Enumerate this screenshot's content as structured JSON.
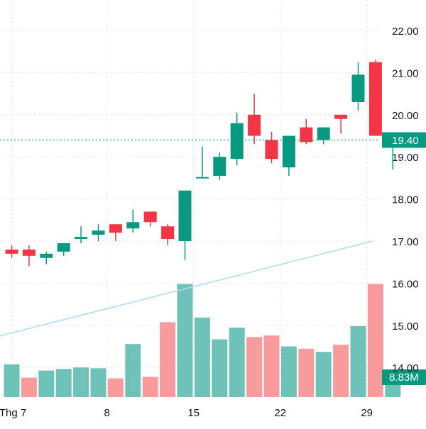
{
  "chart_data": {
    "type": "candlestick",
    "y_axis": {
      "ticks": [
        "22.00",
        "21.00",
        "20.00",
        "19.00",
        "18.00",
        "17.00",
        "16.00",
        "15.00",
        "14.00"
      ],
      "range": [
        13.5,
        22.6
      ],
      "grid": true
    },
    "x_axis": {
      "ticks": [
        {
          "label": "Thg 7",
          "index": 0
        },
        {
          "label": "8",
          "index": 5.5
        },
        {
          "label": "15",
          "index": 10.5
        },
        {
          "label": "22",
          "index": 15.5
        },
        {
          "label": "29",
          "index": 20.5
        }
      ],
      "grid": true
    },
    "candles": [
      {
        "o": 16.8,
        "h": 16.9,
        "l": 16.6,
        "c": 16.7
      },
      {
        "o": 16.8,
        "h": 16.9,
        "l": 16.4,
        "c": 16.65
      },
      {
        "o": 16.6,
        "h": 16.75,
        "l": 16.45,
        "c": 16.7
      },
      {
        "o": 16.75,
        "h": 16.95,
        "l": 16.65,
        "c": 16.95
      },
      {
        "o": 17.05,
        "h": 17.35,
        "l": 16.95,
        "c": 17.1
      },
      {
        "o": 17.15,
        "h": 17.4,
        "l": 17.0,
        "c": 17.25
      },
      {
        "o": 17.4,
        "h": 17.4,
        "l": 17.0,
        "c": 17.2
      },
      {
        "o": 17.3,
        "h": 17.75,
        "l": 17.2,
        "c": 17.45
      },
      {
        "o": 17.7,
        "h": 17.7,
        "l": 17.35,
        "c": 17.45
      },
      {
        "o": 17.35,
        "h": 17.4,
        "l": 16.9,
        "c": 17.05
      },
      {
        "o": 17.0,
        "h": 18.2,
        "l": 16.55,
        "c": 18.2
      },
      {
        "o": 18.52,
        "h": 19.25,
        "l": 18.5,
        "c": 18.52
      },
      {
        "o": 18.55,
        "h": 19.1,
        "l": 18.45,
        "c": 19.0
      },
      {
        "o": 18.95,
        "h": 20.05,
        "l": 18.8,
        "c": 19.8
      },
      {
        "o": 20.0,
        "h": 20.5,
        "l": 19.3,
        "c": 19.5
      },
      {
        "o": 19.4,
        "h": 19.6,
        "l": 18.85,
        "c": 18.95
      },
      {
        "o": 18.75,
        "h": 19.5,
        "l": 18.55,
        "c": 19.5
      },
      {
        "o": 19.7,
        "h": 19.9,
        "l": 19.3,
        "c": 19.35
      },
      {
        "o": 19.4,
        "h": 19.7,
        "l": 19.3,
        "c": 19.7
      },
      {
        "o": 20.0,
        "h": 20.0,
        "l": 19.55,
        "c": 19.9
      },
      {
        "o": 20.3,
        "h": 21.25,
        "l": 20.1,
        "c": 20.95
      },
      {
        "o": 21.25,
        "h": 21.3,
        "l": 19.5,
        "c": 19.5
      },
      {
        "o": 19.35,
        "h": 19.5,
        "l": 18.7,
        "c": 19.4
      }
    ],
    "price_marker": {
      "value": 19.4,
      "label": "19.40"
    },
    "volume": {
      "values": [
        4.2,
        2.5,
        3.4,
        3.6,
        3.8,
        3.7,
        2.4,
        6.8,
        2.6,
        9.6,
        14.5,
        10.2,
        7.4,
        8.9,
        7.7,
        7.9,
        6.5,
        6.2,
        5.8,
        6.7,
        9.1,
        14.5,
        2.4
      ],
      "colors": [
        "up",
        "down",
        "up",
        "up",
        "up",
        "up",
        "down",
        "up",
        "down",
        "down",
        "up",
        "up",
        "up",
        "up",
        "down",
        "down",
        "up",
        "down",
        "up",
        "down",
        "up",
        "down",
        "up"
      ],
      "ceiling": 16.0,
      "last_label": "8.83M"
    },
    "moving_average": {
      "start": 14.75,
      "end": 17.0
    }
  },
  "colors": {
    "up": "#089981",
    "down": "#f23645",
    "up_volume": "#6fc2b7",
    "down_volume": "#f79b9d",
    "moving_average": "#a9dcf6",
    "grid": "#e6e6e6",
    "text": "#131722"
  }
}
